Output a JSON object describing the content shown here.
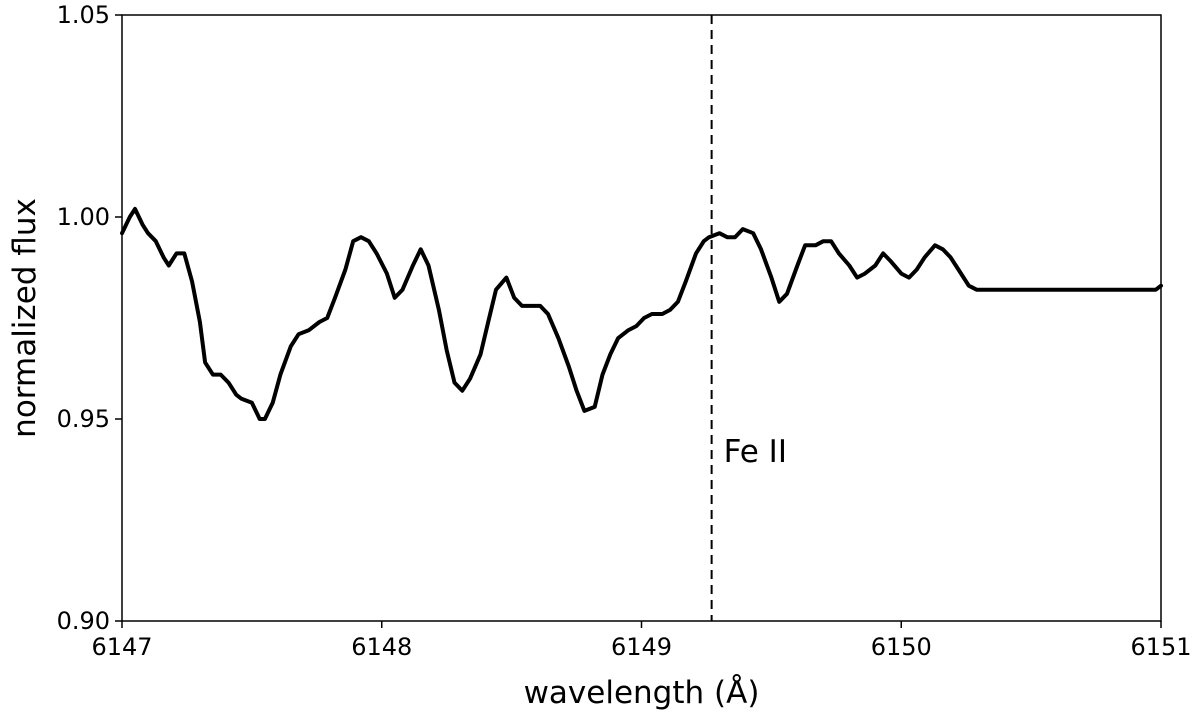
{
  "chart_data": {
    "type": "line",
    "title": "",
    "xlabel": "wavelength (Å)",
    "ylabel": "normalized flux",
    "xlim": [
      6147,
      6151
    ],
    "ylim": [
      0.9,
      1.05
    ],
    "x_ticks": [
      6147,
      6148,
      6149,
      6150,
      6151
    ],
    "x_tick_labels": [
      "6147",
      "6148",
      "6149",
      "6150",
      "6151"
    ],
    "y_ticks": [
      0.9,
      0.95,
      1.0,
      1.05
    ],
    "y_tick_labels": [
      "0.90",
      "0.95",
      "1.00",
      "1.05"
    ],
    "grid": false,
    "line_color": "#000000",
    "series": [
      {
        "x": [
          6147.0,
          6147.03,
          6147.05,
          6147.08,
          6147.1,
          6147.13,
          6147.16,
          6147.18,
          6147.21,
          6147.24,
          6147.27,
          6147.3,
          6147.32,
          6147.35,
          6147.38,
          6147.41,
          6147.44,
          6147.46,
          6147.5,
          6147.53,
          6147.55,
          6147.58,
          6147.61,
          6147.65,
          6147.68,
          6147.72,
          6147.76,
          6147.79,
          6147.82,
          6147.86,
          6147.89,
          6147.92,
          6147.95,
          6147.98,
          6148.02,
          6148.05,
          6148.08,
          6148.12,
          6148.15,
          6148.18,
          6148.22,
          6148.25,
          6148.28,
          6148.31,
          6148.34,
          6148.38,
          6148.41,
          6148.44,
          6148.48,
          6148.51,
          6148.54,
          6148.57,
          6148.61,
          6148.64,
          6148.68,
          6148.72,
          6148.75,
          6148.78,
          6148.82,
          6148.85,
          6148.88,
          6148.91,
          6148.95,
          6148.98,
          6149.01,
          6149.04,
          6149.08,
          6149.11,
          6149.14,
          6149.17,
          6149.21,
          6149.24,
          6149.26,
          6149.3,
          6149.33,
          6149.36,
          6149.39,
          6149.43,
          6149.46,
          6149.5,
          6149.53,
          6149.56,
          6149.6,
          6149.63,
          6149.67,
          6149.7,
          6149.73,
          6149.76,
          6149.8,
          6149.83,
          6149.86,
          6149.9,
          6149.93,
          6149.96,
          6150.0,
          6150.03,
          6150.06,
          6150.09,
          6150.13,
          6150.16,
          6150.19,
          6150.22,
          6150.26,
          6150.29,
          6150.32,
          6150.35,
          6150.39,
          6150.42,
          6150.45,
          6150.49,
          6150.52,
          6150.55,
          6150.58,
          6150.62,
          6150.65,
          6150.68,
          6150.72,
          6150.75,
          6150.78,
          6150.81,
          6150.85,
          6150.88,
          6150.91,
          6150.94,
          6150.98,
          6151.0
        ],
        "y": [
          0.996,
          1.0,
          1.002,
          0.998,
          0.996,
          0.994,
          0.99,
          0.988,
          0.991,
          0.991,
          0.984,
          0.974,
          0.964,
          0.961,
          0.961,
          0.959,
          0.956,
          0.955,
          0.954,
          0.95,
          0.95,
          0.954,
          0.961,
          0.968,
          0.971,
          0.972,
          0.974,
          0.975,
          0.98,
          0.987,
          0.994,
          0.995,
          0.994,
          0.991,
          0.986,
          0.98,
          0.982,
          0.988,
          0.992,
          0.988,
          0.977,
          0.967,
          0.959,
          0.957,
          0.96,
          0.966,
          0.974,
          0.982,
          0.985,
          0.98,
          0.978,
          0.978,
          0.978,
          0.976,
          0.97,
          0.963,
          0.957,
          0.952,
          0.953,
          0.961,
          0.966,
          0.97,
          0.972,
          0.973,
          0.975,
          0.976,
          0.976,
          0.977,
          0.979,
          0.984,
          0.991,
          0.994,
          0.995,
          0.996,
          0.995,
          0.995,
          0.997,
          0.996,
          0.992,
          0.985,
          0.979,
          0.981,
          0.988,
          0.993,
          0.993,
          0.994,
          0.994,
          0.991,
          0.988,
          0.985,
          0.986,
          0.988,
          0.991,
          0.989,
          0.986,
          0.985,
          0.987,
          0.99,
          0.993,
          0.992,
          0.99,
          0.987,
          0.983,
          0.982,
          0.982,
          0.982,
          0.982,
          0.982,
          0.982,
          0.982,
          0.982,
          0.982,
          0.982,
          0.982,
          0.982,
          0.982,
          0.982,
          0.982,
          0.982,
          0.982,
          0.982,
          0.982,
          0.982,
          0.982,
          0.982,
          0.983
        ]
      }
    ],
    "vlines": [
      {
        "x": 6149.27,
        "style": "dashed",
        "label": "Fe II"
      }
    ]
  }
}
